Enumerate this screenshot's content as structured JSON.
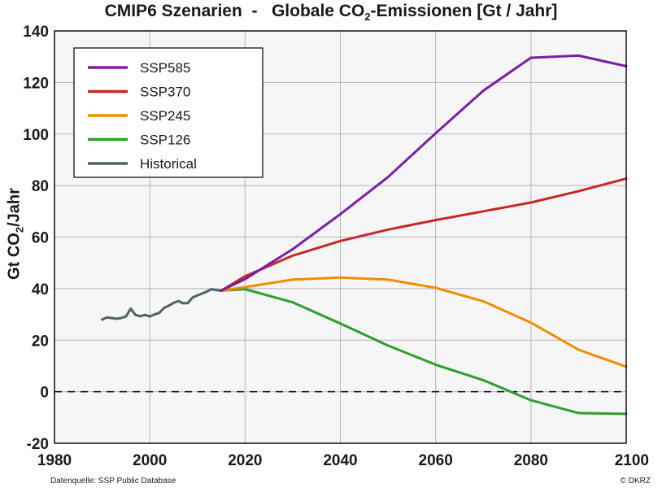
{
  "chart_data": {
    "type": "line",
    "title_parts": [
      "CMIP6 Szenarien  -   Globale CO",
      "2",
      "-Emissionen [Gt / Jahr]"
    ],
    "ylabel_parts": [
      "Gt CO",
      "2",
      "/Jahr"
    ],
    "xlabel": "",
    "xlim": [
      1980,
      2100
    ],
    "ylim": [
      -20,
      140
    ],
    "xticks": [
      1980,
      2000,
      2020,
      2040,
      2060,
      2080,
      2100
    ],
    "yticks": [
      -20,
      0,
      20,
      40,
      60,
      80,
      100,
      120,
      140
    ],
    "grid": true,
    "legend_position": "top-left",
    "zero_line": "dashed",
    "series": [
      {
        "name": "SSP585",
        "color": "#7b1fa2",
        "x": [
          2015,
          2020,
          2030,
          2040,
          2050,
          2060,
          2070,
          2080,
          2090,
          2100
        ],
        "y": [
          39.2,
          43.7,
          55.3,
          68.9,
          83.3,
          100.3,
          116.8,
          129.6,
          130.4,
          126.3
        ]
      },
      {
        "name": "SSP370",
        "color": "#c62828",
        "x": [
          2015,
          2020,
          2030,
          2040,
          2050,
          2060,
          2070,
          2080,
          2090,
          2100
        ],
        "y": [
          39.2,
          44.8,
          52.8,
          58.5,
          62.9,
          66.6,
          70.0,
          73.4,
          77.8,
          82.7
        ]
      },
      {
        "name": "SSP245",
        "color": "#f08c00",
        "x": [
          2015,
          2020,
          2030,
          2040,
          2050,
          2060,
          2070,
          2080,
          2090,
          2100
        ],
        "y": [
          39.2,
          40.6,
          43.5,
          44.3,
          43.5,
          40.3,
          35.1,
          26.8,
          16.3,
          9.7
        ]
      },
      {
        "name": "SSP126",
        "color": "#2e9e2e",
        "x": [
          2015,
          2020,
          2030,
          2040,
          2050,
          2060,
          2070,
          2080,
          2090,
          2100
        ],
        "y": [
          39.2,
          39.8,
          34.7,
          26.5,
          17.9,
          10.5,
          4.5,
          -3.3,
          -8.3,
          -8.6
        ]
      },
      {
        "name": "Historical",
        "color": "#4f6266",
        "x": [
          1990,
          1991,
          1992,
          1993,
          1994,
          1995,
          1996,
          1997,
          1998,
          1999,
          2000,
          2001,
          2002,
          2003,
          2004,
          2005,
          2006,
          2007,
          2008,
          2009,
          2010,
          2011,
          2012,
          2013,
          2014,
          2015
        ],
        "y": [
          28.0,
          28.8,
          28.6,
          28.3,
          28.6,
          29.2,
          32.2,
          29.8,
          29.3,
          29.8,
          29.2,
          30.0,
          30.6,
          32.5,
          33.4,
          34.5,
          35.2,
          34.3,
          34.4,
          36.6,
          37.4,
          38.1,
          38.9,
          39.8,
          39.4,
          39.2
        ]
      }
    ]
  },
  "footer": {
    "source": "Datenquelle: SSP Public Database",
    "credit": "© DKRZ"
  }
}
